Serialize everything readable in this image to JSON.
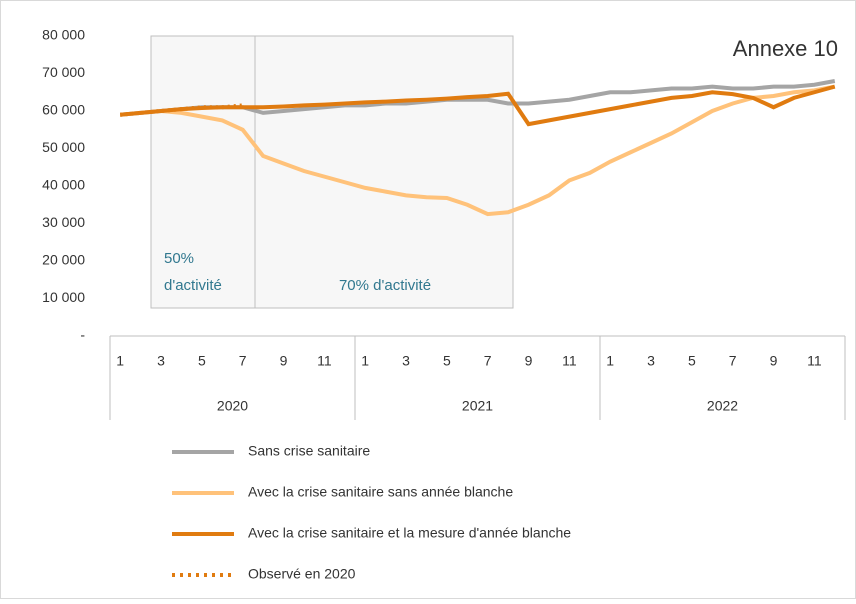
{
  "chart_data": {
    "type": "line",
    "annotations": [
      "Annexe 10",
      "50%",
      "d'activité",
      "70% d'activité"
    ],
    "categories": [
      "1",
      null,
      "3",
      null,
      "5",
      null,
      "7",
      null,
      "9",
      null,
      "11",
      null,
      "1",
      null,
      "3",
      null,
      "5",
      null,
      "7",
      null,
      "9",
      null,
      "11",
      null,
      "1",
      null,
      "3",
      null,
      "5",
      null,
      "7",
      null,
      "9",
      null,
      "11",
      null
    ],
    "year_groups": [
      "2020",
      "2021",
      "2022"
    ],
    "ylim": [
      0,
      80000
    ],
    "yticks": [
      {
        "value": 0,
        "label": "-"
      },
      {
        "value": 10000,
        "label": "10 000"
      },
      {
        "value": 20000,
        "label": "20 000"
      },
      {
        "value": 30000,
        "label": "30 000"
      },
      {
        "value": 40000,
        "label": "40 000"
      },
      {
        "value": 50000,
        "label": "50 000"
      },
      {
        "value": 60000,
        "label": "60 000"
      },
      {
        "value": 70000,
        "label": "70 000"
      },
      {
        "value": 80000,
        "label": "80 000"
      }
    ],
    "series": [
      {
        "name": "Sans crise sanitaire",
        "color": "#a5a5a5",
        "style": "solid",
        "values": [
          59000,
          59500,
          60000,
          60500,
          61000,
          61000,
          61000,
          59500,
          60000,
          60500,
          61000,
          61500,
          61500,
          62000,
          62000,
          62500,
          63000,
          63000,
          63000,
          62000,
          62000,
          62500,
          63000,
          64000,
          65000,
          65000,
          65500,
          66000,
          66000,
          66500,
          66000,
          66000,
          66500,
          66500,
          67000,
          68000
        ]
      },
      {
        "name": "Avec la crise sanitaire sans année blanche",
        "color": "#ffc27a",
        "style": "solid",
        "values": [
          59000,
          59500,
          60000,
          59500,
          58500,
          57500,
          55000,
          48000,
          46000,
          44000,
          42500,
          41000,
          39500,
          38500,
          37500,
          37000,
          36800,
          35000,
          32500,
          33000,
          35000,
          37500,
          41500,
          43500,
          46500,
          49000,
          51500,
          54000,
          57000,
          60000,
          62000,
          63500,
          64000,
          65000,
          65500,
          66500
        ]
      },
      {
        "name": "Avec la crise sanitaire et la mesure d'année blanche",
        "color": "#e07b10",
        "style": "solid",
        "values": [
          59000,
          59500,
          60000,
          60500,
          60800,
          61000,
          61000,
          61000,
          61200,
          61500,
          61700,
          62000,
          62300,
          62500,
          62800,
          63000,
          63300,
          63700,
          64000,
          64600,
          56500,
          57500,
          58500,
          59500,
          60500,
          61500,
          62500,
          63500,
          64000,
          65000,
          64500,
          63500,
          61000,
          63500,
          65000,
          66500
        ]
      },
      {
        "name": "Observé en 2020",
        "color": "#e07b10",
        "style": "dotted",
        "values": [
          59000,
          59500,
          60000,
          60500,
          61000,
          61000,
          61500,
          null,
          null,
          null,
          null,
          null,
          null,
          null,
          null,
          null,
          null,
          null,
          null,
          null,
          null,
          null,
          null,
          null,
          null,
          null,
          null,
          null,
          null,
          null,
          null,
          null,
          null,
          null,
          null,
          null
        ]
      }
    ]
  }
}
